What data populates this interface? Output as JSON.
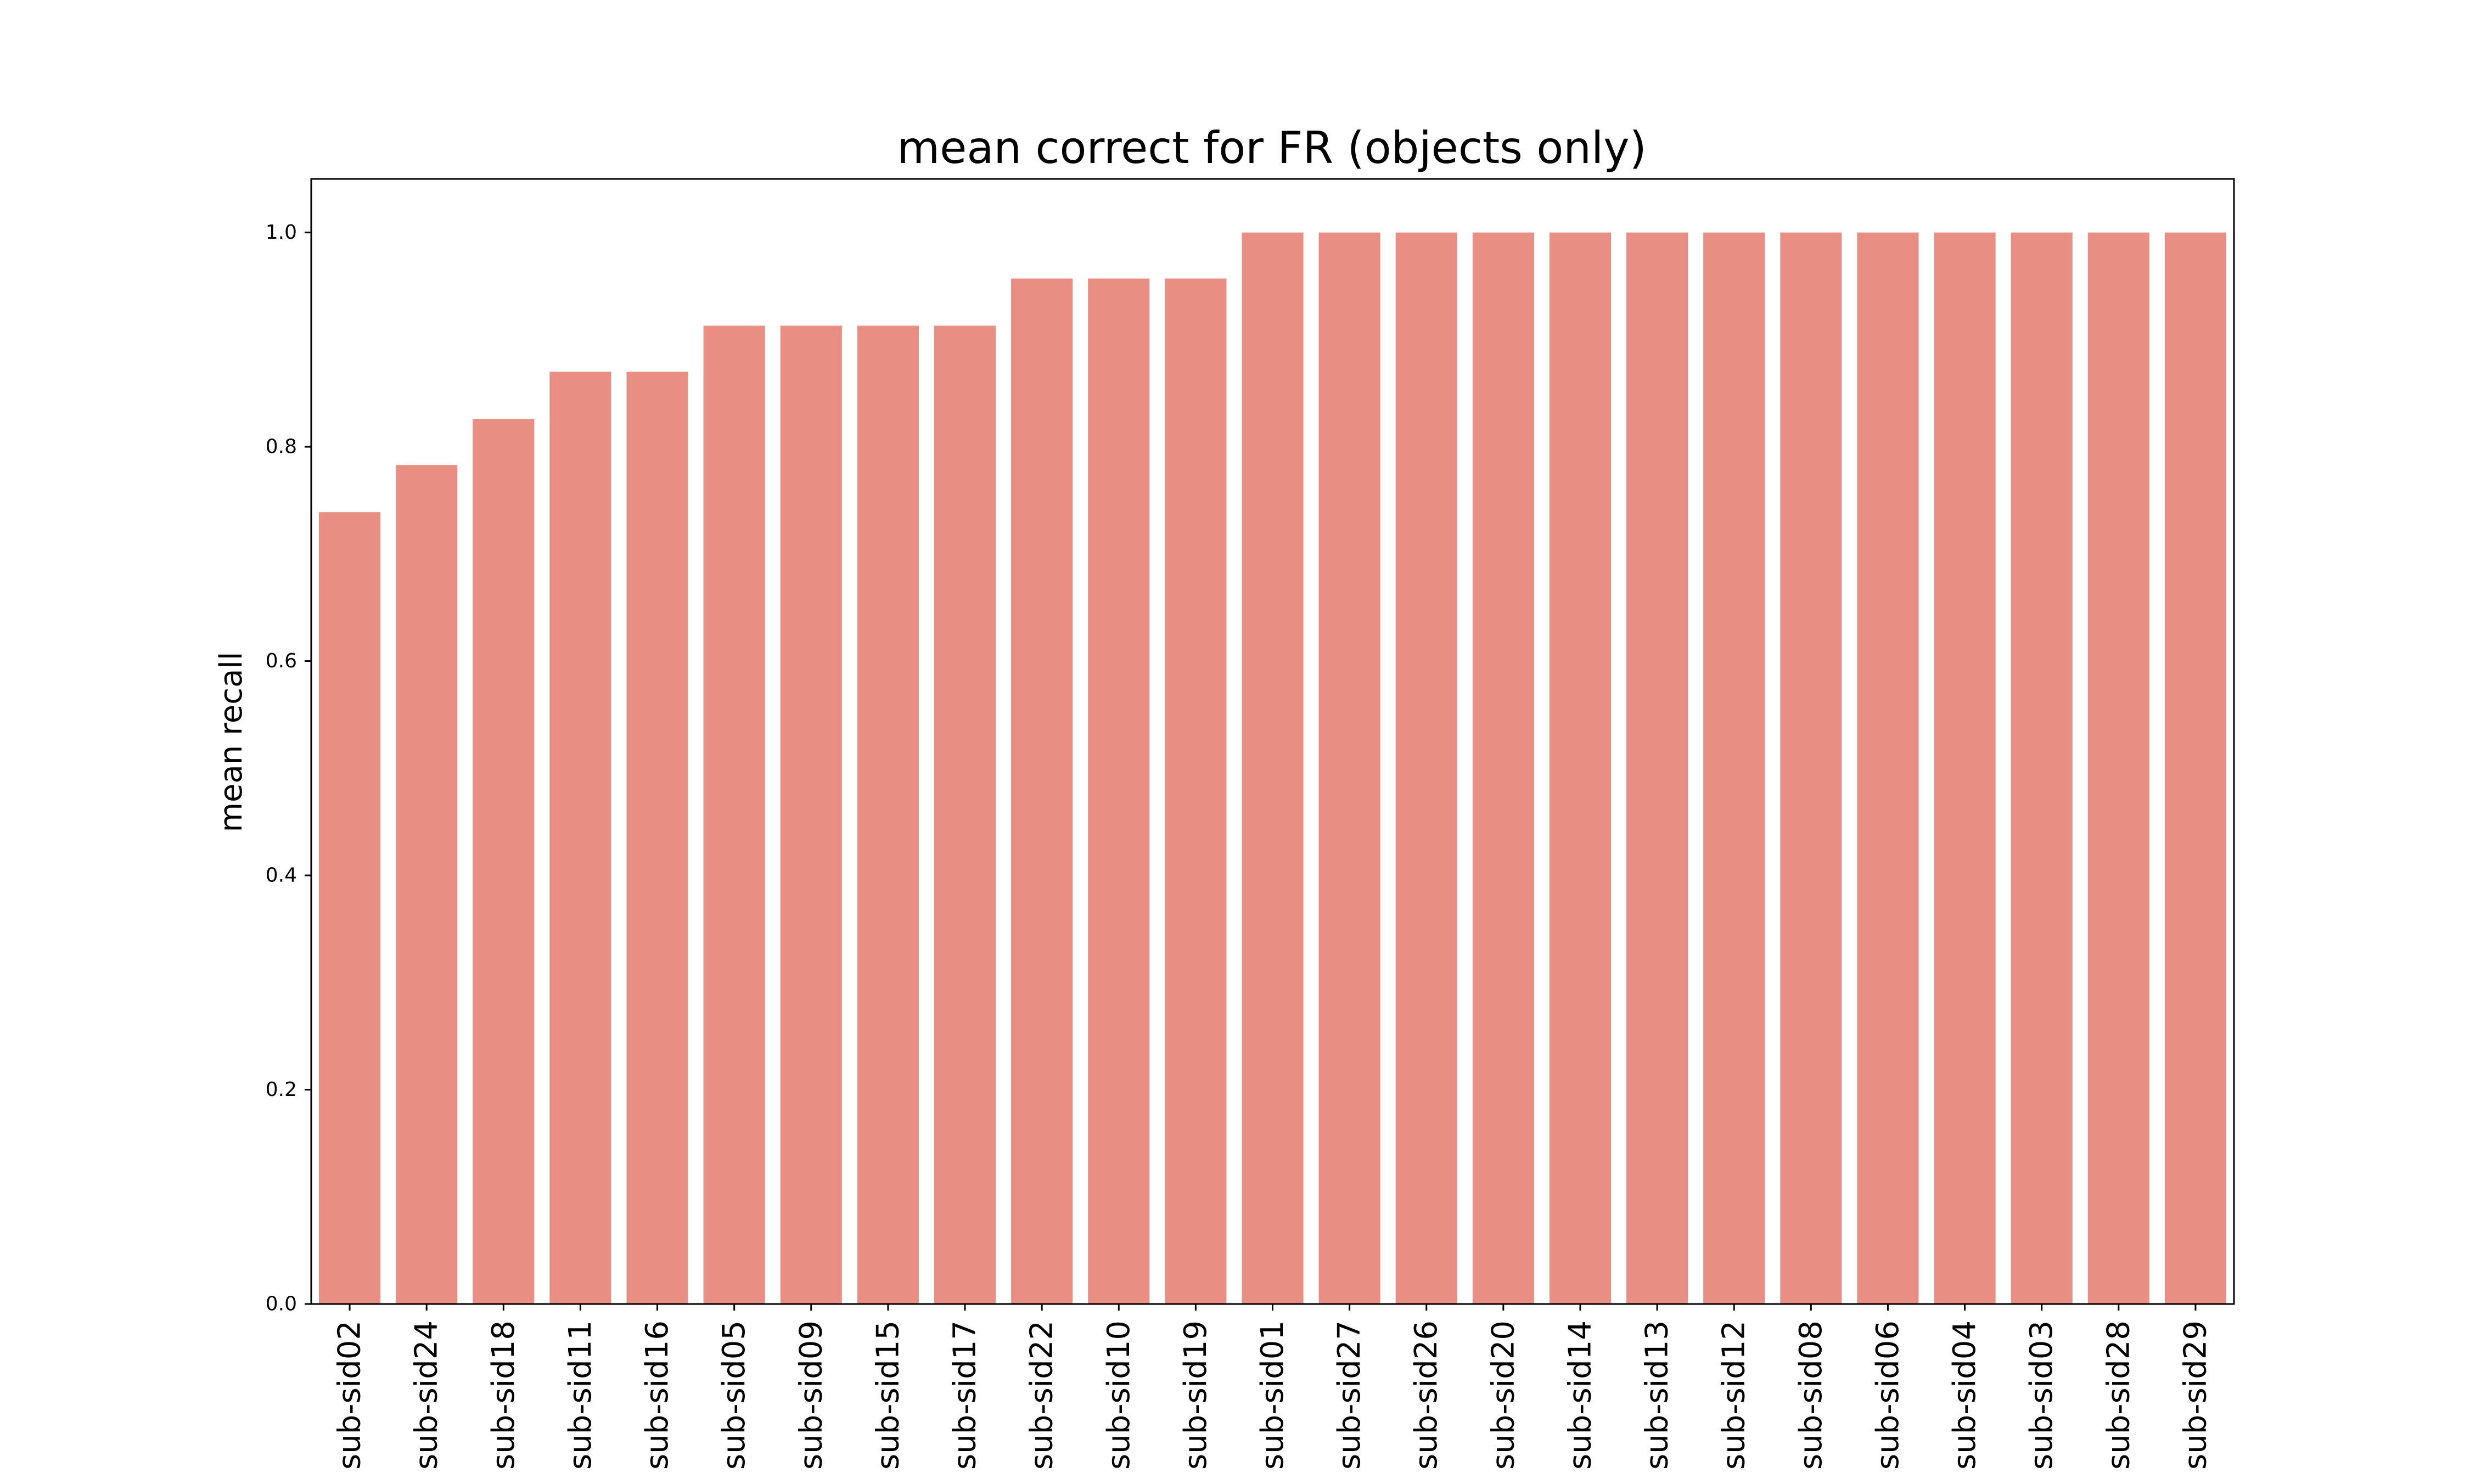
{
  "chart_data": {
    "type": "bar",
    "title": "mean correct for FR (objects only)",
    "xlabel": "",
    "ylabel": "mean recall",
    "categories": [
      "sub-sid02",
      "sub-sid24",
      "sub-sid18",
      "sub-sid11",
      "sub-sid16",
      "sub-sid05",
      "sub-sid09",
      "sub-sid15",
      "sub-sid17",
      "sub-sid22",
      "sub-sid10",
      "sub-sid19",
      "sub-sid01",
      "sub-sid27",
      "sub-sid26",
      "sub-sid20",
      "sub-sid14",
      "sub-sid13",
      "sub-sid12",
      "sub-sid08",
      "sub-sid06",
      "sub-sid04",
      "sub-sid03",
      "sub-sid28",
      "sub-sid29"
    ],
    "values": [
      0.739,
      0.783,
      0.826,
      0.87,
      0.87,
      0.913,
      0.913,
      0.913,
      0.913,
      0.957,
      0.957,
      0.957,
      1.0,
      1.0,
      1.0,
      1.0,
      1.0,
      1.0,
      1.0,
      1.0,
      1.0,
      1.0,
      1.0,
      1.0,
      1.0
    ],
    "yticks": [
      "0.0",
      "0.2",
      "0.4",
      "0.6",
      "0.8",
      "1.0"
    ],
    "ylim": [
      0,
      1.05
    ],
    "grid": false,
    "bar_color": "#e88e83"
  }
}
